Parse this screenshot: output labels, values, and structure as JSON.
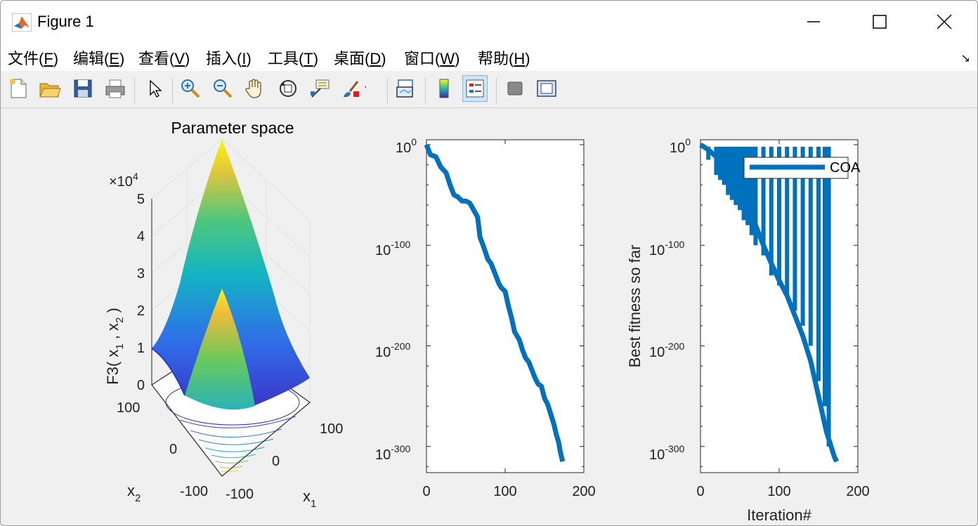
{
  "window": {
    "title": "Figure 1"
  },
  "menu": [
    {
      "label": "文件(",
      "key": "F",
      "close": ")"
    },
    {
      "label": "编辑(",
      "key": "E",
      "close": ")"
    },
    {
      "label": "查看(",
      "key": "V",
      "close": ")"
    },
    {
      "label": "插入(",
      "key": "I",
      "close": ")"
    },
    {
      "label": "工具(",
      "key": "T",
      "close": ")"
    },
    {
      "label": "桌面(",
      "key": "D",
      "close": ")"
    },
    {
      "label": "窗口(",
      "key": "W",
      "close": ")"
    },
    {
      "label": "帮助(",
      "key": "H",
      "close": ")"
    }
  ],
  "toolbar_icons": [
    "new-figure-icon",
    "open-folder-icon",
    "save-icon",
    "print-icon",
    "pointer-icon",
    "zoom-in-icon",
    "zoom-out-icon",
    "pan-hand-icon",
    "rotate-3d-icon",
    "data-cursor-icon",
    "brush-icon",
    "link-plot-icon",
    "colorbar-icon",
    "legend-icon",
    "hide-plot-tools-icon",
    "show-plot-tools-icon"
  ],
  "plot1": {
    "title": "Parameter space",
    "zlabel": "F3( x",
    "zlabel_sub1": "1",
    "zlabel_mid": " , x",
    "zlabel_sub2": "2",
    "zlabel_end": " )",
    "zscale_prefix": "×10",
    "zscale_exp": "4",
    "zticks": [
      "5",
      "4",
      "3",
      "2",
      "1",
      "0"
    ],
    "x2_ticks": [
      "100",
      "0",
      "-100"
    ],
    "x1_ticks": [
      "100",
      "0",
      "-100"
    ],
    "x1_label": "x",
    "x1_sub": "1",
    "x2_label": "x",
    "x2_sub": "2"
  },
  "chart_data": [
    {
      "type": "surface",
      "title": "Parameter space",
      "x1_range": [
        -100,
        100
      ],
      "x2_range": [
        -100,
        100
      ],
      "z_range": [
        0,
        50000
      ]
    },
    {
      "type": "line",
      "xlabel": "",
      "ylabel": "",
      "xlim": [
        0,
        200
      ],
      "yscale": "log",
      "xticks": [
        "0",
        "100",
        "200"
      ],
      "yticks_exp": [
        "0",
        "-100",
        "-200",
        "-300"
      ],
      "x": [
        0,
        5,
        12,
        18,
        25,
        30,
        35,
        40,
        45,
        50,
        55,
        60,
        65,
        68,
        72,
        78,
        82,
        88,
        92,
        95,
        100,
        104,
        108,
        112,
        118,
        122,
        126,
        130,
        134,
        138,
        142,
        146,
        150,
        154,
        158,
        162,
        165,
        168,
        170,
        173
      ],
      "y_exp": [
        0,
        -10,
        -12,
        -22,
        -28,
        -40,
        -50,
        -52,
        -56,
        -56,
        -58,
        -65,
        -72,
        -92,
        -100,
        -114,
        -118,
        -130,
        -138,
        -142,
        -146,
        -160,
        -172,
        -186,
        -194,
        -204,
        -212,
        -216,
        -224,
        -232,
        -238,
        -240,
        -252,
        -258,
        -268,
        -278,
        -288,
        -296,
        -305,
        -315
      ],
      "series": [
        {
          "values_note_exp": "log10 values",
          "color": "#0072bd"
        }
      ]
    },
    {
      "type": "line",
      "xlabel": "Iteration#",
      "ylabel": "Best fitness so far",
      "xlim": [
        0,
        200
      ],
      "yscale": "log",
      "xticks": [
        "0",
        "100",
        "200"
      ],
      "yticks_exp": [
        "0",
        "-100",
        "-200",
        "-300"
      ],
      "legend": "top-right",
      "series": [
        {
          "name": "COA",
          "color": "#0072bd"
        }
      ],
      "envelope_x": [
        0,
        10,
        20,
        30,
        40,
        50,
        60,
        70,
        80,
        90,
        100,
        110,
        120,
        130,
        140,
        150,
        160,
        170,
        173
      ],
      "envelope_y_exp": [
        0,
        -5,
        -12,
        -22,
        -35,
        -48,
        -62,
        -80,
        -100,
        -118,
        -135,
        -150,
        -170,
        -190,
        -215,
        -250,
        -285,
        -310,
        -315
      ],
      "spike_x": [
        10,
        20,
        25,
        30,
        35,
        40,
        45,
        50,
        55,
        60,
        65,
        70,
        80,
        90,
        100,
        110,
        120,
        130,
        140,
        150,
        158,
        163
      ],
      "spike_low_exp": [
        -15,
        -30,
        -35,
        -40,
        -50,
        -55,
        -60,
        -65,
        -75,
        -80,
        -90,
        -100,
        -110,
        -130,
        -140,
        -150,
        -165,
        -180,
        -200,
        -235,
        -260,
        -300
      ],
      "legend_label": "COA"
    }
  ],
  "plot2": {
    "xticks": [
      "0",
      "100",
      "200"
    ],
    "ytick_base": "10",
    "ytick_exps": [
      "0",
      "-100",
      "-200",
      "-300"
    ]
  },
  "plot3": {
    "xticks": [
      "0",
      "100",
      "200"
    ],
    "ytick_base": "10",
    "ytick_exps": [
      "0",
      "-100",
      "-200",
      "-300"
    ],
    "xlabel": "Iteration#",
    "ylabel": "Best fitness so far",
    "legend": "COA"
  }
}
